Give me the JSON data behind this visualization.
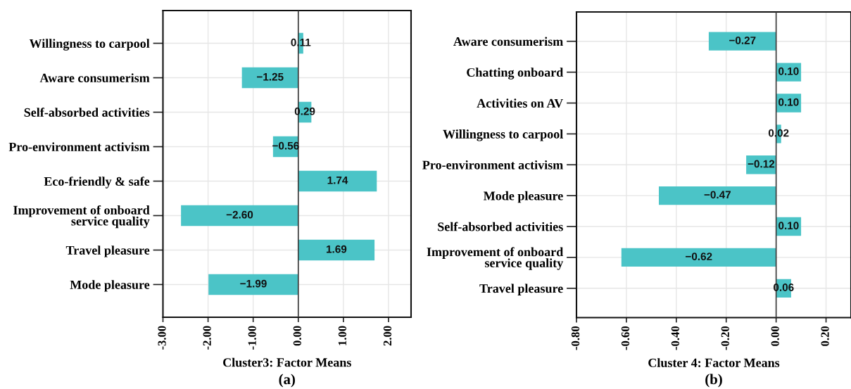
{
  "chart_data": [
    {
      "type": "bar",
      "orientation": "horizontal",
      "categories": [
        "Willingness to carpool",
        "Aware consumerism",
        "Self-absorbed activities",
        "Pro-environment activism",
        "Eco-friendly & safe",
        "Improvement of onboard\nservice quality",
        "Travel pleasure",
        "Mode pleasure"
      ],
      "values": [
        0.11,
        -1.25,
        0.29,
        -0.56,
        1.74,
        -2.6,
        1.69,
        -1.99
      ],
      "value_labels": [
        "0.11",
        "−1.25",
        "0.29",
        "−0.56",
        "1.74",
        "−2.60",
        "1.69",
        "−1.99"
      ],
      "color": "#4bc4c7",
      "xlim": [
        -3,
        2.5
      ],
      "xticks": [
        {
          "value": -3,
          "label": "-3.00"
        },
        {
          "value": -2,
          "label": "-2.00"
        },
        {
          "value": -1,
          "label": "-1.00"
        },
        {
          "value": 0,
          "label": "0.00"
        },
        {
          "value": 1,
          "label": "1.00"
        },
        {
          "value": 2,
          "label": "2.00"
        }
      ],
      "xlabel": "Cluster3: Factor Means",
      "annotations": [
        "(a)"
      ],
      "grid": true,
      "ref_lines": [
        {
          "axis": "x",
          "value": 0,
          "color": "#3a3a3a"
        }
      ]
    },
    {
      "type": "bar",
      "orientation": "horizontal",
      "categories": [
        "Aware consumerism",
        "Chatting onboard",
        "Activities on AV",
        "Willingness to carpool",
        "Pro-environment activism",
        "Mode pleasure",
        "Self-absorbed activities",
        "Improvement of onboard\nservice quality",
        "Travel pleasure"
      ],
      "values": [
        -0.27,
        0.1,
        0.1,
        0.02,
        -0.12,
        -0.47,
        0.1,
        -0.62,
        0.06
      ],
      "value_labels": [
        "−0.27",
        "0.10",
        "0.10",
        "0.02",
        "−0.12",
        "−0.47",
        "0.10",
        "−0.62",
        "0.06"
      ],
      "color": "#4bc4c7",
      "xlim": [
        -0.8,
        0.3
      ],
      "xticks": [
        {
          "value": -0.8,
          "label": "-0.80"
        },
        {
          "value": -0.6,
          "label": "-0.60"
        },
        {
          "value": -0.4,
          "label": "-0.40"
        },
        {
          "value": -0.2,
          "label": "-0.20"
        },
        {
          "value": 0,
          "label": "0.00"
        },
        {
          "value": 0.2,
          "label": "0.20"
        }
      ],
      "xlabel": "Cluster 4: Factor Means",
      "annotations": [
        "(b)"
      ],
      "grid": true,
      "ref_lines": [
        {
          "axis": "x",
          "value": 0,
          "color": "#3a3a3a"
        }
      ]
    }
  ]
}
